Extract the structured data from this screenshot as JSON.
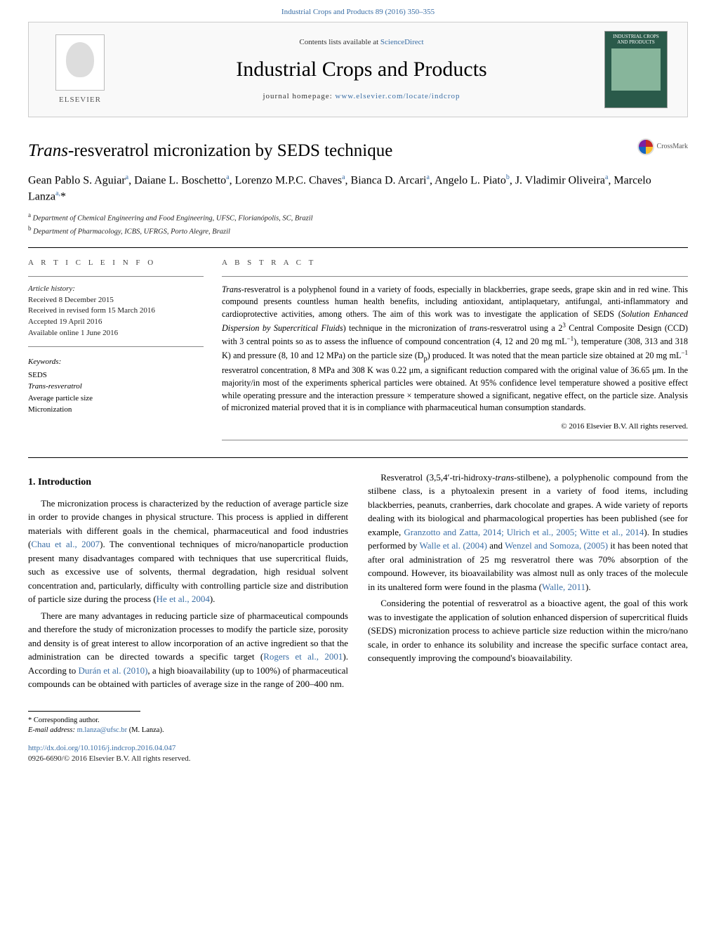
{
  "header": {
    "running_head": "Industrial Crops and Products 89 (2016) 350–355",
    "contents_line_prefix": "Contents lists available at ",
    "contents_link_text": "ScienceDirect",
    "journal_name": "Industrial Crops and Products",
    "homepage_prefix": "journal homepage: ",
    "homepage_url": "www.elsevier.com/locate/indcrop",
    "publisher_word": "ELSEVIER",
    "cover_title": "INDUSTRIAL CROPS AND PRODUCTS"
  },
  "crossmark_label": "CrossMark",
  "title_html": "<em>Trans</em>-resveratrol micronization by SEDS technique",
  "authors_html": "Gean Pablo S. Aguiar<sup>a</sup>, Daiane L. Boschetto<sup>a</sup>, Lorenzo M.P.C. Chaves<sup>a</sup>, Bianca D. Arcari<sup>a</sup>, Angelo L. Piato<sup>b</sup>, J. Vladimir Oliveira<sup>a</sup>, Marcelo Lanza<sup>a,</sup><span class='star'>*</span>",
  "affiliations": [
    {
      "sup": "a",
      "text": "Department of Chemical Engineering and Food Engineering, UFSC, Florianópolis, SC, Brazil"
    },
    {
      "sup": "b",
      "text": "Department of Pharmacology, ICBS, UFRGS, Porto Alegre, Brazil"
    }
  ],
  "section_heads": {
    "article_info": "A R T I C L E   I N F O",
    "abstract": "A B S T R A C T"
  },
  "history": {
    "label": "Article history:",
    "lines": [
      "Received 8 December 2015",
      "Received in revised form 15 March 2016",
      "Accepted 19 April 2016",
      "Available online 1 June 2016"
    ]
  },
  "keywords": {
    "label": "Keywords:",
    "items": [
      "SEDS",
      "Trans-resveratrol",
      "Average particle size",
      "Micronization"
    ]
  },
  "abstract_html": "<em>Trans</em>-resveratrol is a polyphenol found in a variety of foods, especially in blackberries, grape seeds, grape skin and in red wine. This compound presents countless human health benefits, including antioxidant, antiplaquetary, antifungal, anti-inflammatory and cardioprotective activities, among others. The aim of this work was to investigate the application of SEDS (<em>Solution Enhanced Dispersion by Supercritical Fluids</em>) technique in the micronization of <em>trans</em>-resveratrol using a 2<sup>3</sup> Central Composite Design (CCD) with 3 central points so as to assess the influence of compound concentration (4, 12 and 20 mg mL<sup>−1</sup>), temperature (308, 313 and 318 K) and pressure (8, 10 and 12 MPa) on the particle size (D<sub>p</sub>) produced. It was noted that the mean particle size obtained at 20 mg mL<sup>−1</sup> resveratrol concentration, 8 MPa and 308 K was 0.22 μm, a significant reduction compared with the original value of 36.65 μm. In the majority/in most of the experiments spherical particles were obtained. At 95% confidence level temperature showed a positive effect while operating pressure and the interaction pressure × temperature showed a significant, negative effect, on the particle size. Analysis of micronized material proved that it is in compliance with pharmaceutical human consumption standards.",
  "copyright": "© 2016 Elsevier B.V. All rights reserved.",
  "body": {
    "intro_head": "1.  Introduction",
    "p1_html": "The micronization process is characterized by the reduction of average particle size in order to provide changes in physical structure. This process is applied in different materials with different goals in the chemical, pharmaceutical and food industries (<a href='#'>Chau et al., 2007</a>). The conventional techniques of micro/nanoparticle production present many disadvantages compared with techniques that use supercritical fluids, such as excessive use of solvents, thermal degradation, high residual solvent concentration and, particularly, difficulty with controlling particle size and distribution of particle size during the process (<a href='#'>He et al., 2004</a>).",
    "p2_html": "There are many advantages in reducing particle size of pharmaceutical compounds and therefore the study of micronization processes to modify the particle size, porosity and density is of great interest to allow incorporation of an active ingredient so that the administration can be directed towards a specific target (<a href='#'>Rogers et al., 2001</a>). According to <a href='#'>Durán et al. (2010)</a>, a high bioavailability (up to 100%) of pharmaceutical compounds can be obtained with particles of average size in the range of 200–400 nm.",
    "p3_html": "Resveratrol (3,5,4′-tri-hidroxy-<em>trans</em>-stilbene), a polyphenolic compound from the stilbene class, is a phytoalexin present in a variety of food items, including blackberries, peanuts, cranberries, dark chocolate and grapes. A wide variety of reports dealing with its biological and pharmacological properties has been published (see for example, <a href='#'>Granzotto and Zatta, 2014; Ulrich et al., 2005; Witte et al., 2014</a>). In studies performed by <a href='#'>Walle et al. (2004)</a> and <a href='#'>Wenzel and Somoza, (2005)</a> it has been noted that after oral administration of 25 mg resveratrol there was 70% absorption of the compound. However, its bioavailability was almost null as only traces of the molecule in its unaltered form were found in the plasma (<a href='#'>Walle, 2011</a>).",
    "p4_html": "Considering the potential of resveratrol as a bioactive agent, the goal of this work was to investigate the application of solution enhanced dispersion of supercritical fluids (SEDS) micronization process to achieve particle size reduction within the micro/nano scale, in order to enhance its solubility and increase the specific surface contact area, consequently improving the compound's bioavailability."
  },
  "footer": {
    "corr_label": "* Corresponding author.",
    "email_label": "E-mail address:",
    "email": "m.lanza@ufsc.br",
    "email_paren": "(M. Lanza).",
    "doi": "http://dx.doi.org/10.1016/j.indcrop.2016.04.047",
    "issn_line": "0926-6690/© 2016 Elsevier B.V. All rights reserved."
  },
  "colors": {
    "link": "#3a6ea5",
    "rule": "#000000",
    "cover_bg": "#2a5a4a"
  }
}
